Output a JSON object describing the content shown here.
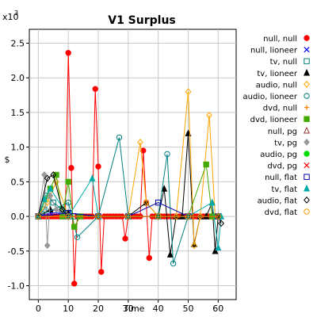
{
  "chart_data": {
    "type": "line",
    "title": "V1 Surplus",
    "xlabel": "Time",
    "ylabel": "$",
    "y_multiplier_label": "x10",
    "y_multiplier_exp": "3",
    "xlim": [
      -3,
      66
    ],
    "ylim": [
      -1.2,
      2.7
    ],
    "xticks": [
      "0",
      "10",
      "20",
      "30",
      "40",
      "50",
      "60"
    ],
    "yticks": [
      "-1.0",
      "-0.5",
      "0.0",
      "0.5",
      "1.0",
      "1.5",
      "2.0",
      "2.5"
    ],
    "grid": true,
    "legend_position": "right",
    "series": [
      {
        "name": "null, null",
        "color": "#ff0000",
        "marker": "circle-filled",
        "points": [
          [
            0,
            0
          ],
          [
            1,
            0
          ],
          [
            2,
            0
          ],
          [
            3,
            0
          ],
          [
            4,
            0
          ],
          [
            5,
            0
          ],
          [
            6,
            0
          ],
          [
            7,
            0
          ],
          [
            8,
            0
          ],
          [
            9,
            0
          ],
          [
            10,
            2.36
          ],
          [
            11,
            0.7
          ],
          [
            12,
            -0.97
          ],
          [
            13,
            0
          ],
          [
            14,
            0
          ],
          [
            15,
            0
          ],
          [
            16,
            0
          ],
          [
            17,
            0
          ],
          [
            18,
            0
          ],
          [
            19,
            1.84
          ],
          [
            20,
            0.72
          ],
          [
            21,
            -0.8
          ],
          [
            22,
            0
          ],
          [
            23,
            0
          ],
          [
            24,
            0
          ],
          [
            25,
            0
          ],
          [
            26,
            0
          ],
          [
            27,
            0
          ],
          [
            28,
            0
          ],
          [
            29,
            -0.32
          ],
          [
            30,
            0
          ],
          [
            31,
            0
          ],
          [
            32,
            0
          ],
          [
            33,
            0
          ],
          [
            34,
            0
          ],
          [
            35,
            0.95
          ],
          [
            36,
            0.2
          ],
          [
            37,
            -0.6
          ],
          [
            38,
            0
          ],
          [
            39,
            0
          ],
          [
            40,
            0
          ],
          [
            41,
            0
          ],
          [
            42,
            0
          ],
          [
            43,
            0
          ],
          [
            44,
            0
          ],
          [
            45,
            0
          ],
          [
            46,
            0
          ],
          [
            47,
            0
          ],
          [
            48,
            0
          ],
          [
            49,
            0
          ],
          [
            50,
            0
          ],
          [
            51,
            0
          ],
          [
            52,
            0
          ],
          [
            53,
            0
          ],
          [
            54,
            0
          ],
          [
            55,
            0
          ],
          [
            56,
            0
          ],
          [
            57,
            0
          ],
          [
            58,
            0
          ],
          [
            59,
            0
          ],
          [
            60,
            0
          ]
        ]
      },
      {
        "name": "null, lioneer",
        "color": "#0000ff",
        "marker": "x",
        "points": [
          [
            0,
            0
          ],
          [
            4,
            0.05
          ],
          [
            10,
            0.05
          ],
          [
            20,
            0
          ],
          [
            30,
            0
          ],
          [
            40,
            0
          ],
          [
            50,
            0
          ],
          [
            60,
            0
          ]
        ]
      },
      {
        "name": "tv, null",
        "color": "#008080",
        "marker": "square-open",
        "points": [
          [
            0,
            0
          ],
          [
            2,
            0.1
          ],
          [
            3,
            0.3
          ],
          [
            5,
            0.2
          ],
          [
            8,
            0.1
          ],
          [
            10,
            0.05
          ],
          [
            12,
            0
          ],
          [
            20,
            0
          ],
          [
            30,
            0
          ],
          [
            40,
            0
          ],
          [
            50,
            0
          ],
          [
            60,
            0
          ]
        ]
      },
      {
        "name": "tv, lioneer",
        "color": "#000000",
        "marker": "triangle-filled",
        "points": [
          [
            0,
            0
          ],
          [
            4,
            0.1
          ],
          [
            10,
            0.05
          ],
          [
            20,
            0
          ],
          [
            30,
            0
          ],
          [
            36,
            0.2
          ],
          [
            40,
            0
          ],
          [
            42,
            0.4
          ],
          [
            44,
            -0.55
          ],
          [
            46,
            0
          ],
          [
            48,
            0
          ],
          [
            50,
            1.2
          ],
          [
            52,
            -0.4
          ],
          [
            54,
            0
          ],
          [
            56,
            0
          ],
          [
            58,
            0.2
          ],
          [
            59,
            -0.5
          ],
          [
            60,
            0
          ]
        ]
      },
      {
        "name": "audio, null",
        "color": "#ffa500",
        "marker": "diamond-open",
        "points": [
          [
            0,
            0
          ],
          [
            3,
            0.2
          ],
          [
            6,
            0.5
          ],
          [
            10,
            0
          ],
          [
            20,
            0
          ],
          [
            30,
            0
          ],
          [
            34,
            1.07
          ],
          [
            36,
            0.2
          ],
          [
            40,
            0
          ],
          [
            46,
            0
          ],
          [
            50,
            1.8
          ],
          [
            52,
            -0.42
          ],
          [
            54,
            0
          ],
          [
            57,
            1.46
          ],
          [
            59,
            0
          ],
          [
            60,
            0
          ]
        ]
      },
      {
        "name": "audio, lioneer",
        "color": "#008080",
        "marker": "circle-open",
        "points": [
          [
            0,
            0
          ],
          [
            10,
            0.2
          ],
          [
            13,
            -0.3
          ],
          [
            20,
            0
          ],
          [
            27,
            1.14
          ],
          [
            30,
            0
          ],
          [
            40,
            0
          ],
          [
            43,
            0.9
          ],
          [
            45,
            -0.68
          ],
          [
            50,
            0
          ],
          [
            60,
            0
          ]
        ]
      },
      {
        "name": "dvd, null",
        "color": "#ff8000",
        "marker": "plus",
        "points": [
          [
            0,
            0
          ],
          [
            10,
            0
          ],
          [
            20,
            0
          ],
          [
            30,
            0
          ],
          [
            40,
            0
          ],
          [
            50,
            0
          ],
          [
            60,
            0
          ]
        ]
      },
      {
        "name": "dvd, lioneer",
        "color": "#44aa00",
        "marker": "square-filled",
        "points": [
          [
            0,
            0
          ],
          [
            4,
            0.4
          ],
          [
            6,
            0.6
          ],
          [
            8,
            0
          ],
          [
            10,
            0.5
          ],
          [
            12,
            -0.15
          ],
          [
            14,
            0
          ],
          [
            20,
            0
          ],
          [
            30,
            0
          ],
          [
            40,
            0
          ],
          [
            50,
            0
          ],
          [
            56,
            0.75
          ],
          [
            58,
            0
          ],
          [
            60,
            0
          ]
        ]
      },
      {
        "name": "null, pg",
        "color": "#993333",
        "marker": "triangle-open",
        "points": [
          [
            0,
            0
          ],
          [
            10,
            0
          ],
          [
            20,
            0
          ],
          [
            30,
            0
          ],
          [
            40,
            0
          ],
          [
            50,
            0
          ],
          [
            60,
            0
          ]
        ]
      },
      {
        "name": "tv, pg",
        "color": "#999999",
        "marker": "diamond-filled",
        "points": [
          [
            0,
            0
          ],
          [
            2,
            0.6
          ],
          [
            3,
            -0.42
          ],
          [
            4,
            0.3
          ],
          [
            6,
            0.1
          ],
          [
            10,
            0
          ],
          [
            20,
            0
          ],
          [
            30,
            0
          ],
          [
            40,
            0
          ],
          [
            50,
            0
          ],
          [
            60,
            0
          ]
        ]
      },
      {
        "name": "audio, pg",
        "color": "#00dd00",
        "marker": "circle-filled",
        "points": [
          [
            0,
            0
          ],
          [
            10,
            0
          ],
          [
            20,
            0
          ],
          [
            30,
            0
          ],
          [
            40,
            0
          ],
          [
            50,
            0
          ],
          [
            60,
            0
          ]
        ]
      },
      {
        "name": "dvd, pg",
        "color": "#ff0000",
        "marker": "x",
        "points": [
          [
            0,
            0
          ],
          [
            10,
            0
          ],
          [
            20,
            0
          ],
          [
            30,
            0
          ],
          [
            40,
            0
          ],
          [
            50,
            0
          ],
          [
            60,
            0
          ]
        ]
      },
      {
        "name": "null, flat",
        "color": "#0000aa",
        "marker": "square-open",
        "points": [
          [
            0,
            0
          ],
          [
            10,
            0.05
          ],
          [
            20,
            0
          ],
          [
            30,
            0
          ],
          [
            40,
            0.2
          ],
          [
            50,
            0
          ],
          [
            60,
            0
          ]
        ]
      },
      {
        "name": "tv, flat",
        "color": "#00aaaa",
        "marker": "triangle-filled",
        "points": [
          [
            0,
            0
          ],
          [
            2,
            0.25
          ],
          [
            4,
            0.4
          ],
          [
            10,
            0
          ],
          [
            18,
            0.55
          ],
          [
            20,
            0
          ],
          [
            30,
            0
          ],
          [
            40,
            0
          ],
          [
            50,
            0
          ],
          [
            58,
            0.2
          ],
          [
            60,
            -0.45
          ],
          [
            61,
            0
          ]
        ]
      },
      {
        "name": "audio, flat",
        "color": "#000000",
        "marker": "diamond-open",
        "points": [
          [
            0,
            0
          ],
          [
            3,
            0.55
          ],
          [
            5,
            0.6
          ],
          [
            8,
            0.1
          ],
          [
            10,
            0
          ],
          [
            20,
            0
          ],
          [
            30,
            0
          ],
          [
            40,
            0
          ],
          [
            50,
            0
          ],
          [
            60,
            0
          ],
          [
            61,
            -0.1
          ]
        ]
      },
      {
        "name": "dvd, flat",
        "color": "#ff9900",
        "marker": "circle-open",
        "points": [
          [
            0,
            0
          ],
          [
            10,
            0
          ],
          [
            20,
            0
          ],
          [
            30,
            0
          ],
          [
            40,
            0
          ],
          [
            50,
            0
          ],
          [
            60,
            0
          ]
        ]
      }
    ]
  }
}
